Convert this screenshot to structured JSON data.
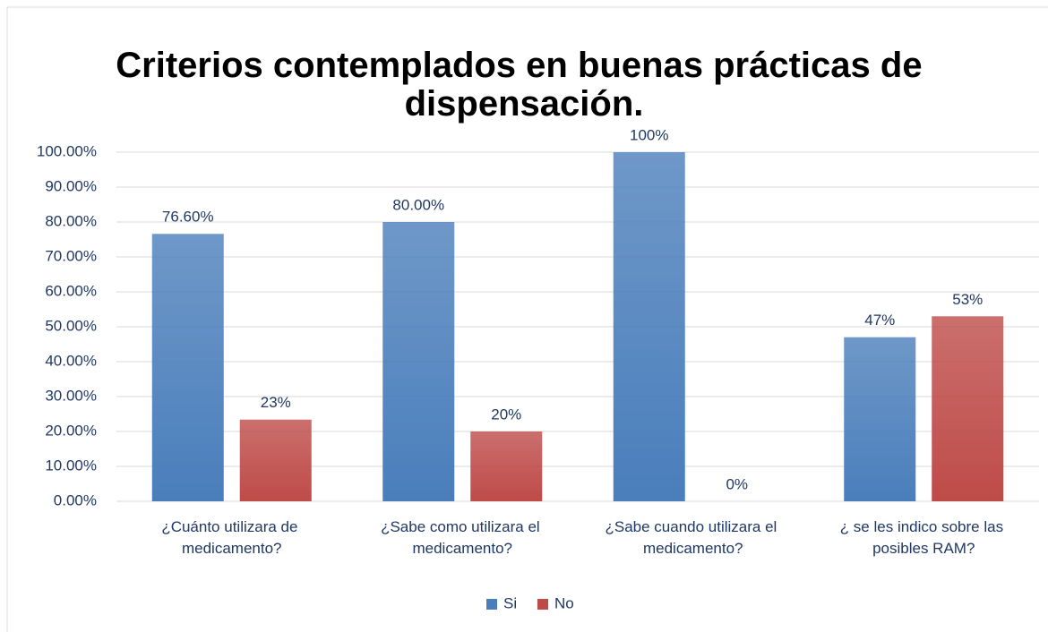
{
  "chart_data": {
    "type": "bar",
    "title": "Criterios contemplados en buenas prácticas de dispensación.",
    "categories": [
      "¿Cuánto utilizara de medicamento?",
      "¿Sabe como utilizara el medicamento?",
      "¿Sabe cuando utilizara el medicamento?",
      "¿ se les indico sobre las posibles RAM?"
    ],
    "series": [
      {
        "name": "Si",
        "color": "#4a7ebb",
        "values": [
          76.6,
          80,
          100,
          47
        ],
        "value_labels": [
          "76.60%",
          "80.00%",
          "100%",
          "47%"
        ]
      },
      {
        "name": "No",
        "color": "#be4b48",
        "values": [
          23.4,
          20,
          0,
          53
        ],
        "value_labels": [
          "23%",
          "20%",
          "0%",
          "53%"
        ]
      }
    ],
    "ylim": [
      0,
      100
    ],
    "yticks": [
      {
        "value": 0,
        "label": "0.00%"
      },
      {
        "value": 10,
        "label": "10.00%"
      },
      {
        "value": 20,
        "label": "20.00%"
      },
      {
        "value": 30,
        "label": "30.00%"
      },
      {
        "value": 40,
        "label": "40.00%"
      },
      {
        "value": 50,
        "label": "50.00%"
      },
      {
        "value": 60,
        "label": "60.00%"
      },
      {
        "value": 70,
        "label": "70.00%"
      },
      {
        "value": 80,
        "label": "80.00%"
      },
      {
        "value": 90,
        "label": "90.00%"
      },
      {
        "value": 100,
        "label": "100.00%"
      }
    ],
    "grid": true,
    "legend": "bottom"
  }
}
